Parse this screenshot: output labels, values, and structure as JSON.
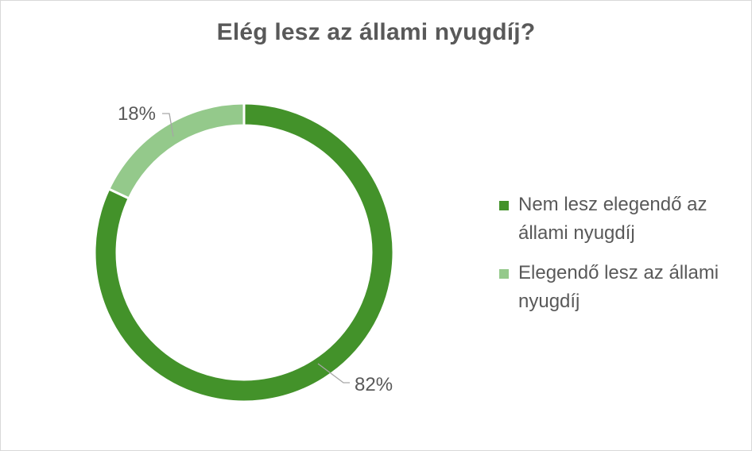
{
  "chart_data": {
    "type": "pie",
    "variant": "doughnut",
    "title": "Elég lesz az állami nyugdíj?",
    "categories": [
      "Nem lesz elegendő az állami nyugdíj",
      "Elegendő lesz az állami nyugdíj"
    ],
    "values": [
      82,
      18
    ],
    "labels": [
      "82%",
      "18%"
    ],
    "colors": [
      "#43922a",
      "#94c98b"
    ],
    "legend_position": "right"
  }
}
